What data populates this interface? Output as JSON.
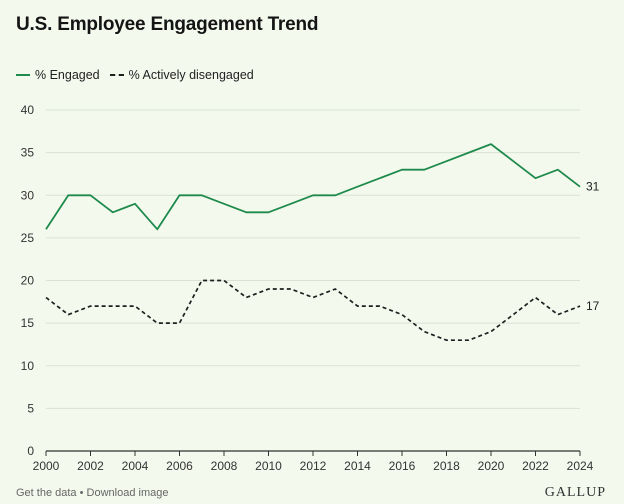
{
  "chart_data": {
    "type": "line",
    "title": "U.S. Employee Engagement Trend",
    "xlabel": "",
    "ylabel": "",
    "xlim": [
      2000,
      2024
    ],
    "ylim": [
      0,
      40
    ],
    "yticks": [
      0,
      5,
      10,
      15,
      20,
      25,
      30,
      35,
      40
    ],
    "xticks": [
      2000,
      2002,
      2004,
      2006,
      2008,
      2010,
      2012,
      2014,
      2016,
      2018,
      2020,
      2022,
      2024
    ],
    "grid": true,
    "legend_position": "top-left",
    "x": [
      2000,
      2001,
      2002,
      2003,
      2004,
      2005,
      2006,
      2007,
      2008,
      2009,
      2010,
      2011,
      2012,
      2013,
      2014,
      2015,
      2016,
      2017,
      2018,
      2019,
      2020,
      2021,
      2022,
      2023,
      2024
    ],
    "series": [
      {
        "name": "% Engaged",
        "style": "solid",
        "color": "#1e8a4c",
        "values": [
          26,
          30,
          30,
          28,
          29,
          26,
          30,
          30,
          29,
          28,
          28,
          29,
          30,
          30,
          31,
          32,
          33,
          33,
          34,
          35,
          36,
          34,
          32,
          33,
          31
        ],
        "end_label": "31"
      },
      {
        "name": "% Actively disengaged",
        "style": "dashed",
        "color": "#1f1f1f",
        "values": [
          18,
          16,
          17,
          17,
          17,
          15,
          15,
          20,
          20,
          18,
          19,
          19,
          18,
          19,
          17,
          17,
          16,
          14,
          13,
          13,
          14,
          16,
          18,
          16,
          17
        ],
        "end_label": "17"
      }
    ]
  },
  "footer": {
    "get_data": "Get the data",
    "separator": "•",
    "download": "Download image"
  },
  "logo": "GALLUP"
}
